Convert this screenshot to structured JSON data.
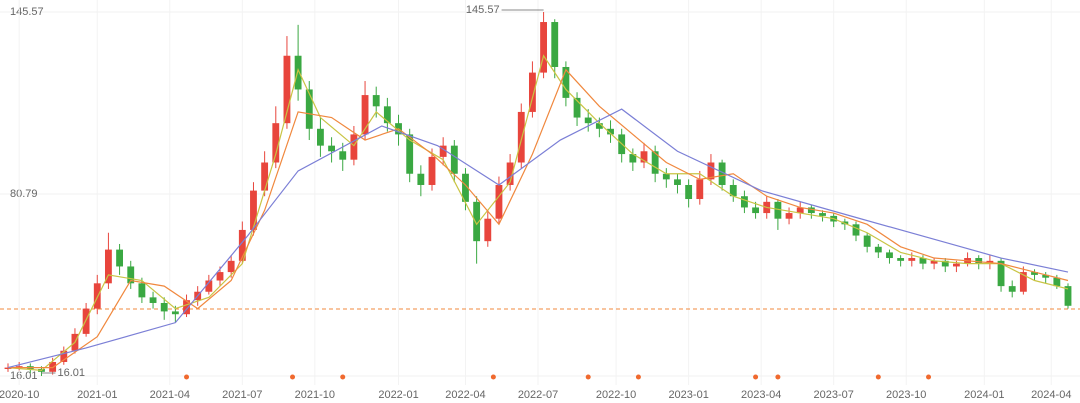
{
  "chart_data": {
    "type": "candlestick",
    "x": [
      0,
      2,
      4,
      6,
      8,
      10,
      12,
      14,
      16,
      18,
      20,
      22,
      24,
      26,
      28,
      30,
      32,
      34,
      36,
      38,
      40,
      42,
      44,
      46,
      48,
      50,
      52,
      54,
      56,
      58,
      60,
      62,
      64,
      66,
      68,
      70,
      72,
      74,
      76,
      78,
      80,
      82,
      84,
      86,
      88,
      90,
      92,
      94,
      96,
      98,
      100,
      102,
      104,
      106,
      108,
      110,
      112,
      114,
      116,
      118,
      120,
      122,
      124,
      126,
      128,
      130,
      132,
      134,
      136,
      138,
      140,
      142,
      144,
      146,
      148,
      150,
      152,
      154,
      156,
      158,
      160,
      162,
      164,
      166,
      168,
      170,
      172,
      174,
      176,
      178,
      180,
      182,
      184,
      186,
      188,
      190
    ],
    "open": [
      18.5,
      19,
      19.5,
      18.5,
      17.5,
      21,
      25,
      31,
      40,
      49,
      61,
      55,
      49,
      44,
      42,
      39,
      38,
      43,
      46,
      50,
      53,
      57,
      68,
      82,
      92,
      106,
      130,
      118,
      104,
      98,
      96,
      93,
      102,
      116,
      112,
      106,
      102,
      88,
      84,
      94,
      98,
      88,
      78,
      64,
      72,
      84,
      92,
      110,
      124,
      142,
      126,
      115,
      108,
      106,
      104,
      102,
      95,
      92,
      96,
      88,
      86,
      84,
      79,
      86,
      92,
      84,
      80,
      76,
      74,
      78,
      72,
      74,
      76,
      74,
      73,
      71,
      70,
      66,
      62,
      60,
      58,
      57,
      58,
      56,
      57,
      55,
      56,
      58,
      56,
      57,
      48,
      46,
      53,
      52,
      51,
      48
    ],
    "high": [
      20.5,
      21,
      20.5,
      19.5,
      22.5,
      26.5,
      33,
      42,
      52,
      67,
      63,
      57,
      51,
      46,
      44,
      41,
      45,
      48,
      52,
      55,
      59,
      71,
      85,
      96,
      112,
      137,
      141,
      121,
      108,
      101,
      99,
      105,
      121,
      119,
      115,
      109,
      104,
      91,
      97,
      101,
      100,
      90,
      80,
      75,
      87,
      95,
      113,
      128,
      145.57,
      143,
      128,
      117,
      111,
      108,
      107,
      104,
      97,
      99,
      98,
      90,
      88,
      86,
      89,
      95,
      93,
      86,
      82,
      78,
      80,
      79,
      76,
      78,
      77,
      75,
      74,
      72,
      71,
      67,
      63,
      61,
      59,
      60,
      59,
      58,
      58,
      57,
      60,
      59,
      59,
      58,
      50,
      55,
      54,
      53,
      52,
      49
    ],
    "low": [
      17.5,
      18,
      17,
      16.01,
      16.5,
      20,
      24,
      30,
      38,
      47,
      52,
      47,
      42,
      40,
      36,
      35,
      37,
      41,
      45,
      48,
      51,
      56,
      66,
      80,
      90,
      104,
      114,
      100,
      94,
      92,
      89,
      91,
      100,
      108,
      103,
      98,
      85,
      80,
      82,
      91,
      85,
      75,
      56,
      62,
      70,
      82,
      90,
      108,
      122,
      122,
      112,
      105,
      103,
      101,
      99,
      92,
      89,
      90,
      85,
      83,
      81,
      76,
      77,
      84,
      82,
      78,
      74,
      72,
      72,
      68,
      70,
      72,
      72,
      71,
      69,
      68,
      64,
      60,
      58,
      56,
      55,
      55,
      54,
      54,
      53,
      53,
      55,
      54,
      54,
      46,
      44,
      45,
      50,
      49,
      47,
      40
    ],
    "close": [
      19,
      19.5,
      18.5,
      17.5,
      21,
      25,
      31,
      40,
      49,
      61,
      55,
      49,
      44,
      42,
      39,
      38,
      43,
      46,
      50,
      53,
      57,
      68,
      82,
      92,
      106,
      130,
      118,
      104,
      98,
      96,
      93,
      102,
      116,
      112,
      106,
      102,
      88,
      84,
      94,
      98,
      88,
      78,
      64,
      72,
      84,
      92,
      110,
      124,
      142,
      126,
      115,
      108,
      106,
      104,
      102,
      95,
      92,
      96,
      88,
      86,
      84,
      79,
      86,
      92,
      84,
      80,
      76,
      74,
      78,
      72,
      74,
      76,
      74,
      73,
      71,
      70,
      66,
      62,
      60,
      58,
      57,
      58,
      56,
      57,
      55,
      56,
      58,
      56,
      57,
      48,
      46,
      53,
      52,
      51,
      48,
      41
    ],
    "up_color": "#e8453c",
    "down_color": "#3aa842",
    "lines": [
      {
        "color": "#c9c443",
        "x": [
          0,
          6,
          12,
          18,
          24,
          30,
          36,
          42,
          48,
          52,
          56,
          62,
          66,
          72,
          78,
          84,
          90,
          96,
          100,
          106,
          112,
          118,
          124,
          130,
          136,
          142,
          148,
          154,
          160,
          166,
          172,
          178,
          184,
          190
        ],
        "values": [
          19,
          18,
          28,
          52,
          50,
          40,
          44,
          56,
          95,
          125,
          108,
          98,
          110,
          100,
          93,
          70,
          85,
          130,
          118,
          106,
          95,
          88,
          88,
          80,
          76,
          74,
          72,
          67,
          60,
          57,
          56,
          56,
          50,
          47
        ]
      },
      {
        "color": "#f0883e",
        "x": [
          0,
          8,
          16,
          22,
          28,
          34,
          40,
          46,
          52,
          58,
          64,
          70,
          76,
          82,
          88,
          94,
          100,
          106,
          112,
          118,
          124,
          130,
          136,
          142,
          148,
          154,
          160,
          166,
          172,
          178,
          184,
          190
        ],
        "values": [
          19,
          19,
          30,
          50,
          48,
          40,
          50,
          75,
          110,
          108,
          100,
          104,
          95,
          84,
          70,
          95,
          125,
          112,
          102,
          92,
          86,
          88,
          80,
          76,
          74,
          70,
          62,
          58,
          57,
          56,
          53,
          50
        ]
      },
      {
        "color": "#7b7fd6",
        "x": [
          0,
          14,
          30,
          43,
          52,
          67,
          77,
          88,
          99,
          110,
          120,
          135,
          151,
          169,
          178,
          190
        ],
        "values": [
          19,
          26,
          35,
          66,
          89,
          105,
          98,
          84,
          100,
          111,
          96,
          82,
          73,
          63,
          58,
          53
        ]
      }
    ],
    "reference_line": {
      "value": 39.86,
      "color": "#f0883e"
    },
    "markers": {
      "color": "#f0692e",
      "x": [
        32,
        51,
        60,
        87,
        104,
        113,
        134,
        138,
        156,
        165
      ]
    },
    "annotations": [
      {
        "label": "145.57",
        "x": 96,
        "y": 145.57
      },
      {
        "label": "16.01",
        "x": 6,
        "y": 16.01
      }
    ],
    "xlim": [
      0,
      190
    ],
    "xticks": [
      {
        "value": 2,
        "label": "2020-10"
      },
      {
        "value": 16,
        "label": "2021-01"
      },
      {
        "value": 29,
        "label": "2021-04"
      },
      {
        "value": 42,
        "label": "2021-07"
      },
      {
        "value": 55,
        "label": "2021-10"
      },
      {
        "value": 70,
        "label": "2022-01"
      },
      {
        "value": 82,
        "label": "2022-04"
      },
      {
        "value": 95,
        "label": "2022-07"
      },
      {
        "value": 109,
        "label": "2022-10"
      },
      {
        "value": 122,
        "label": "2023-01"
      },
      {
        "value": 135,
        "label": "2023-04"
      },
      {
        "value": 148,
        "label": "2023-07"
      },
      {
        "value": 161,
        "label": "2023-10"
      },
      {
        "value": 175,
        "label": "2024-01"
      },
      {
        "value": 187,
        "label": "2024-04"
      }
    ],
    "ylim": [
      16.01,
      145.57
    ],
    "yticks": [
      16.01,
      80.79,
      145.57
    ],
    "grid": true
  }
}
